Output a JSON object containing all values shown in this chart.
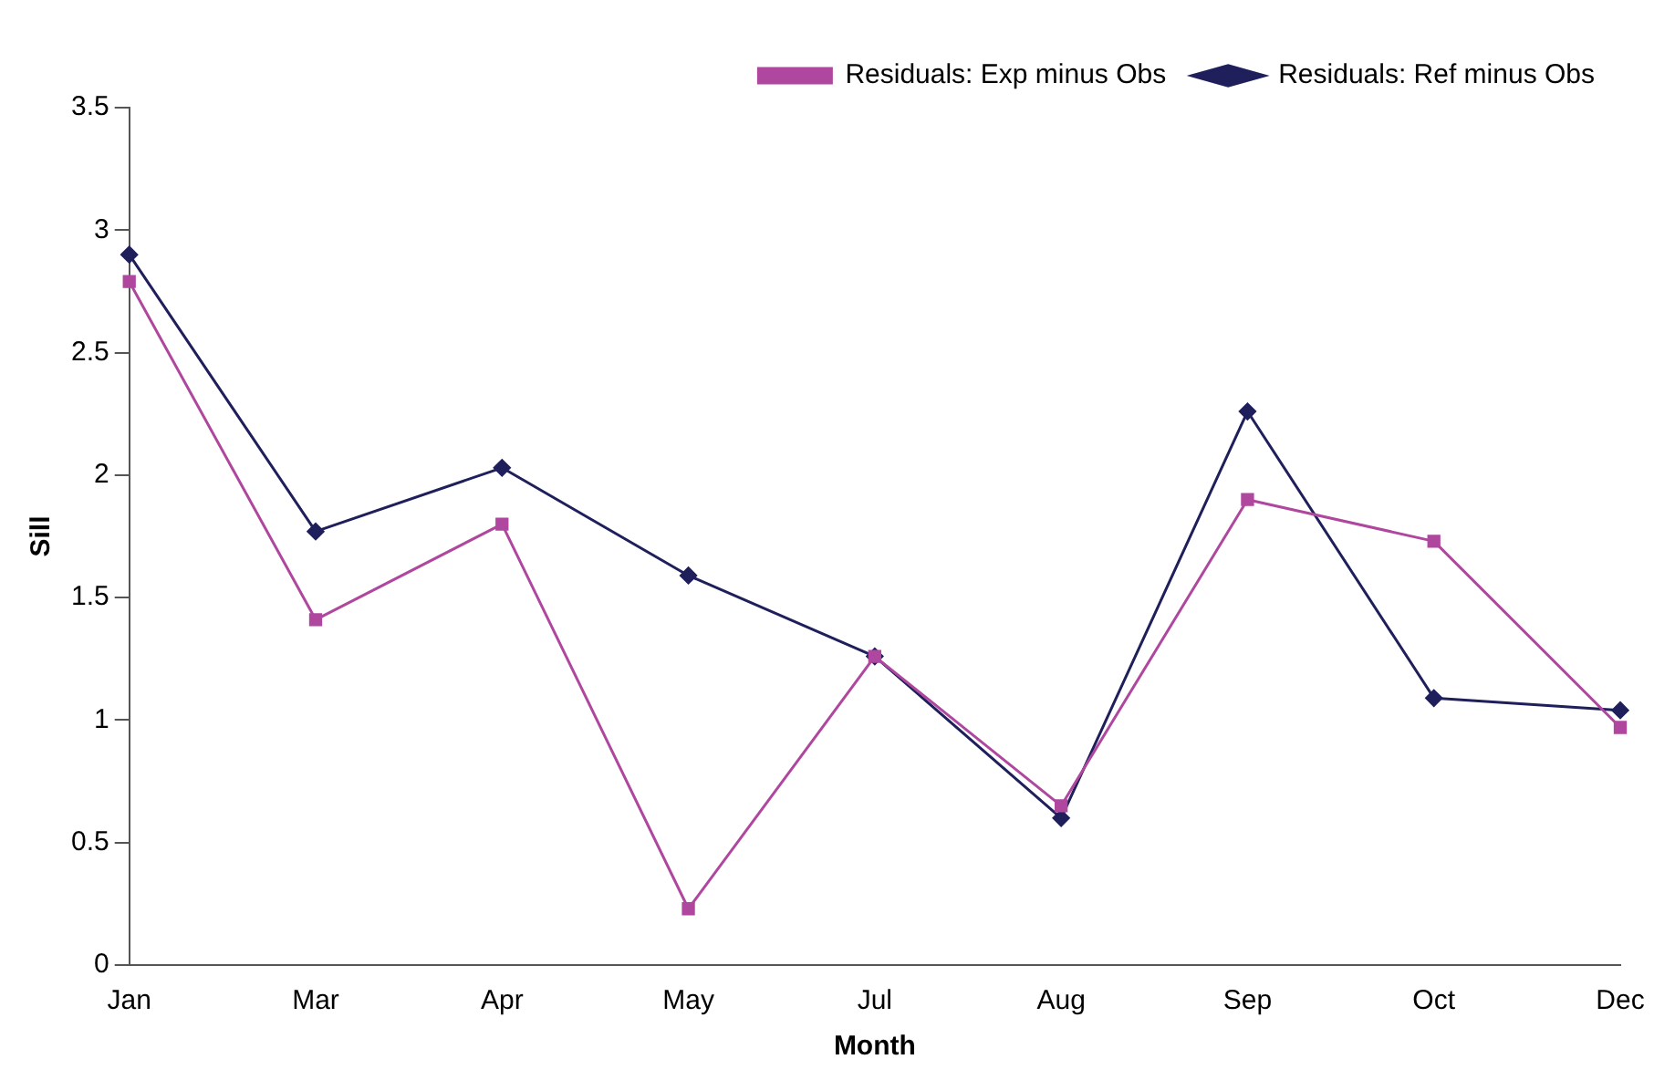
{
  "chart_data": {
    "type": "line",
    "xlabel": "Month",
    "ylabel": "Sill",
    "categories": [
      "Jan",
      "Mar",
      "Apr",
      "May",
      "Jul",
      "Aug",
      "Sep",
      "Oct",
      "Dec"
    ],
    "series": [
      {
        "name": "Residuals: Ref minus Obs",
        "color": "#1f1f5c",
        "marker": "diamond",
        "values": [
          2.9,
          1.77,
          2.03,
          1.59,
          1.26,
          0.6,
          2.26,
          1.09,
          1.04
        ]
      },
      {
        "name": "Residuals: Exp minus Obs",
        "color": "#b0479f",
        "marker": "square",
        "values": [
          2.79,
          1.41,
          1.8,
          0.23,
          1.26,
          0.65,
          1.9,
          1.73,
          0.97
        ]
      }
    ],
    "ylim": [
      0,
      3.5
    ],
    "yticks": [
      0,
      0.5,
      1,
      1.5,
      2,
      2.5,
      3,
      3.5
    ],
    "grid": false,
    "legend": "top right",
    "line_style": "solid"
  }
}
